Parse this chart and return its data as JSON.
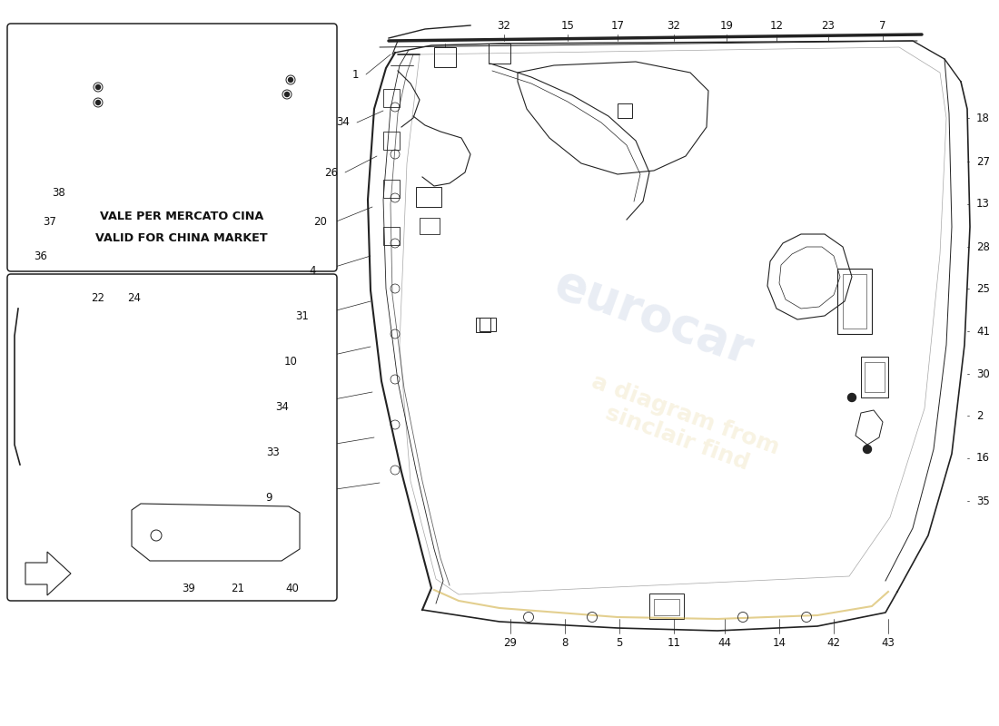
{
  "bg_color": "#ffffff",
  "lc": "#222222",
  "label_color": "#111111",
  "wm1_color": "#c8a020",
  "wm2_color": "#5577aa",
  "china_text_1": "VALE PER MERCATO CINA",
  "china_text_2": "VALID FOR CHINA MARKET",
  "top_labels": [
    [
      5.55,
      7.72,
      "32"
    ],
    [
      6.25,
      7.72,
      "15"
    ],
    [
      6.8,
      7.72,
      "17"
    ],
    [
      7.42,
      7.72,
      "32"
    ],
    [
      8.0,
      7.72,
      "19"
    ],
    [
      8.55,
      7.72,
      "12"
    ],
    [
      9.12,
      7.72,
      "23"
    ],
    [
      9.72,
      7.72,
      "7"
    ]
  ],
  "right_labels": [
    [
      10.75,
      6.7,
      "18"
    ],
    [
      10.75,
      6.22,
      "27"
    ],
    [
      10.75,
      5.75,
      "13"
    ],
    [
      10.75,
      5.28,
      "28"
    ],
    [
      10.75,
      4.82,
      "25"
    ],
    [
      10.75,
      4.35,
      "41"
    ],
    [
      10.75,
      3.88,
      "30"
    ],
    [
      10.75,
      3.42,
      "2"
    ],
    [
      10.75,
      2.95,
      "16"
    ],
    [
      10.75,
      2.48,
      "35"
    ]
  ],
  "left_labels": [
    [
      3.95,
      7.18,
      "1"
    ],
    [
      3.85,
      6.65,
      "34"
    ],
    [
      3.72,
      6.1,
      "26"
    ],
    [
      3.6,
      5.55,
      "20"
    ],
    [
      3.48,
      5.02,
      "4"
    ],
    [
      3.4,
      4.52,
      "31"
    ],
    [
      3.28,
      4.02,
      "10"
    ],
    [
      3.18,
      3.52,
      "34"
    ],
    [
      3.08,
      3.02,
      "33"
    ],
    [
      3.0,
      2.52,
      "9"
    ]
  ],
  "bottom_labels": [
    [
      5.62,
      0.92,
      "29"
    ],
    [
      6.22,
      0.92,
      "8"
    ],
    [
      6.82,
      0.92,
      "5"
    ],
    [
      7.42,
      0.92,
      "11"
    ],
    [
      7.98,
      0.92,
      "44"
    ],
    [
      8.58,
      0.92,
      "14"
    ],
    [
      9.18,
      0.92,
      "42"
    ],
    [
      9.78,
      0.92,
      "43"
    ]
  ],
  "inset_china_labels": [
    [
      0.8,
      5.88,
      "38"
    ],
    [
      0.7,
      5.55,
      "37"
    ],
    [
      0.6,
      5.18,
      "36"
    ]
  ],
  "inset_lower_labels": [
    [
      1.08,
      4.72,
      "22"
    ],
    [
      1.48,
      4.72,
      "24"
    ],
    [
      2.08,
      1.52,
      "39"
    ],
    [
      2.62,
      1.52,
      "21"
    ],
    [
      3.22,
      1.52,
      "40"
    ]
  ]
}
